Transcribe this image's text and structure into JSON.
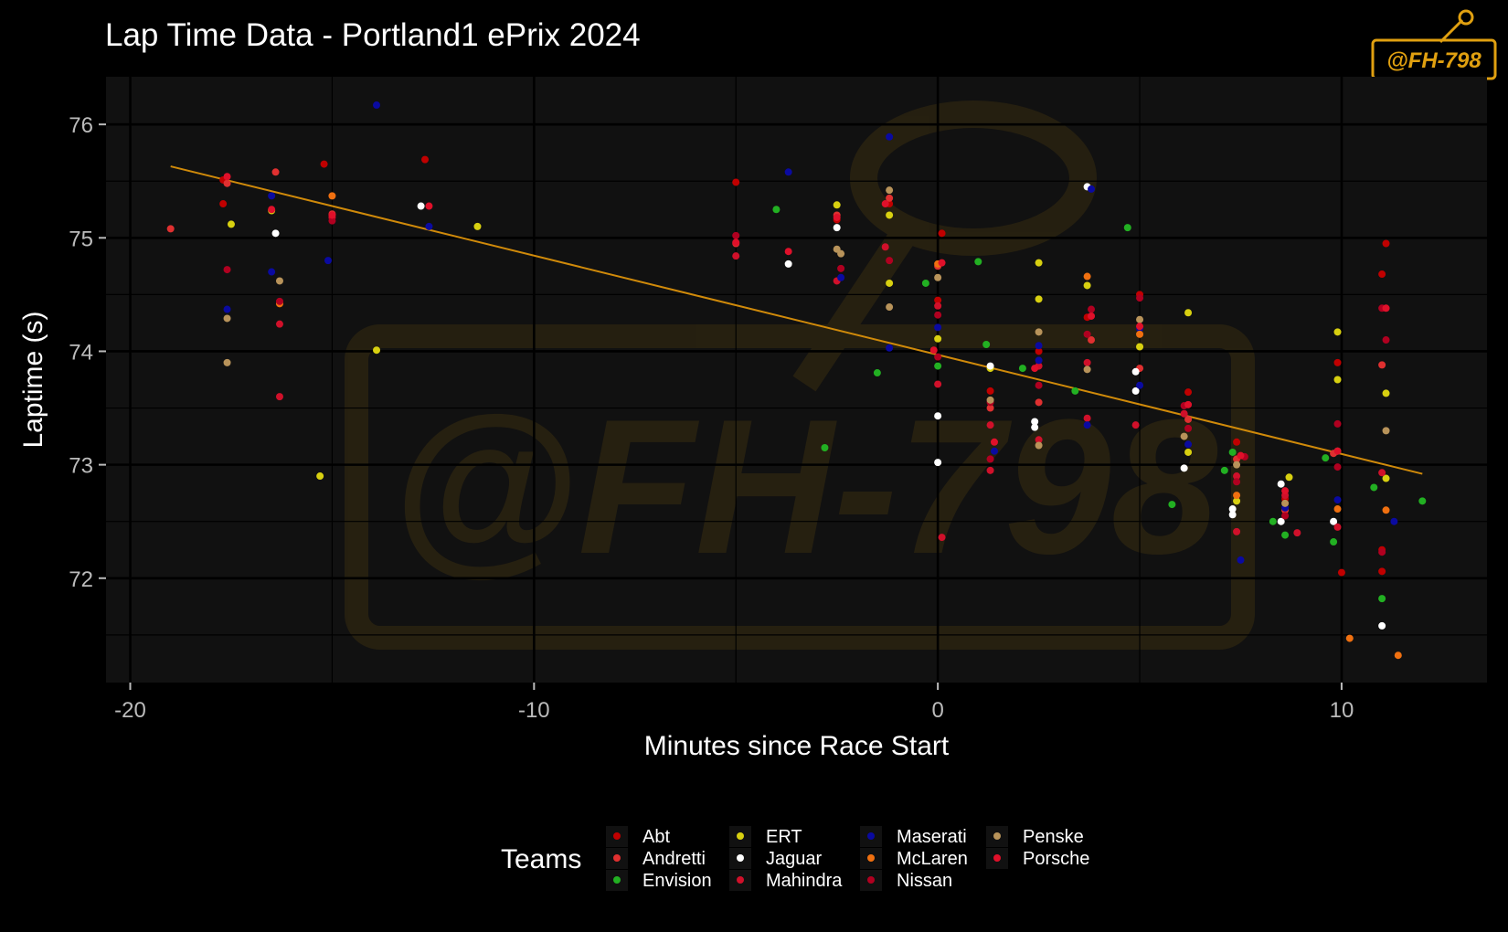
{
  "chart_data": {
    "type": "scatter",
    "title": "Lap Time Data - Portland1 ePrix 2024",
    "xlabel": "Minutes since Race Start",
    "ylabel": "Laptime (s)",
    "xlim": [
      -20.6,
      13.6
    ],
    "ylim": [
      71.08,
      76.42
    ],
    "x_ticks": [
      -20,
      -10,
      0,
      10
    ],
    "x_tick_labels": [
      "-20",
      "-10",
      "0",
      "10"
    ],
    "y_ticks": [
      72,
      73,
      74,
      75,
      76
    ],
    "y_tick_labels": [
      "72",
      "73",
      "74",
      "75",
      "76"
    ],
    "grid": true,
    "legend_title": "Teams",
    "legend_position": "bottom",
    "trend_line": {
      "color": "#D08A0A",
      "points": [
        [
          -19.0,
          75.63
        ],
        [
          12.0,
          72.92
        ]
      ]
    },
    "series": [
      {
        "name": "Abt",
        "color": "#C00000",
        "points": [
          [
            -17.7,
            75.51
          ],
          [
            -17.7,
            75.3
          ],
          [
            -15.2,
            75.65
          ],
          [
            -12.7,
            75.69
          ],
          [
            -5.0,
            75.49
          ],
          [
            -2.5,
            75.16
          ],
          [
            -1.2,
            75.3
          ],
          [
            0.1,
            75.04
          ],
          [
            0.0,
            74.45
          ],
          [
            1.3,
            73.65
          ],
          [
            2.5,
            74.0
          ],
          [
            3.7,
            74.3
          ],
          [
            5.0,
            74.5
          ],
          [
            6.2,
            73.64
          ],
          [
            7.4,
            73.2
          ],
          [
            8.6,
            72.7
          ],
          [
            9.9,
            73.9
          ],
          [
            11.1,
            74.95
          ],
          [
            11.0,
            74.68
          ],
          [
            11.0,
            72.25
          ],
          [
            11.0,
            72.06
          ],
          [
            10.0,
            72.05
          ]
        ]
      },
      {
        "name": "Andretti",
        "color": "#E03030",
        "points": [
          [
            -19.0,
            75.08
          ],
          [
            -17.6,
            75.48
          ],
          [
            -16.4,
            75.58
          ],
          [
            -15.0,
            75.21
          ],
          [
            -5.0,
            74.95
          ],
          [
            -2.5,
            75.2
          ],
          [
            -1.2,
            75.35
          ],
          [
            0.0,
            74.75
          ],
          [
            1.3,
            73.5
          ],
          [
            2.5,
            73.55
          ],
          [
            3.8,
            74.1
          ],
          [
            5.0,
            73.85
          ],
          [
            6.2,
            73.4
          ],
          [
            7.4,
            73.05
          ],
          [
            8.6,
            72.6
          ],
          [
            9.8,
            73.1
          ],
          [
            11.0,
            73.88
          ]
        ]
      },
      {
        "name": "Envision",
        "color": "#22B022",
        "points": [
          [
            -4.0,
            75.25
          ],
          [
            -2.8,
            73.15
          ],
          [
            -1.5,
            73.81
          ],
          [
            -0.3,
            74.6
          ],
          [
            0.0,
            73.87
          ],
          [
            1.0,
            74.79
          ],
          [
            1.2,
            74.06
          ],
          [
            2.1,
            73.85
          ],
          [
            3.4,
            73.65
          ],
          [
            4.7,
            75.09
          ],
          [
            5.8,
            72.65
          ],
          [
            7.1,
            72.95
          ],
          [
            7.3,
            73.11
          ],
          [
            8.3,
            72.5
          ],
          [
            8.6,
            72.38
          ],
          [
            9.6,
            73.06
          ],
          [
            9.8,
            72.32
          ],
          [
            10.8,
            72.8
          ],
          [
            11.0,
            71.82
          ],
          [
            12.0,
            72.68
          ]
        ]
      },
      {
        "name": "ERT",
        "color": "#D8D010",
        "points": [
          [
            -17.5,
            75.12
          ],
          [
            -16.5,
            75.24
          ],
          [
            -15.3,
            72.9
          ],
          [
            -13.9,
            74.01
          ],
          [
            -11.4,
            75.1
          ],
          [
            -2.5,
            75.29
          ],
          [
            -1.2,
            75.2
          ],
          [
            -1.2,
            74.6
          ],
          [
            0.0,
            74.11
          ],
          [
            1.3,
            73.85
          ],
          [
            2.5,
            74.78
          ],
          [
            2.5,
            74.46
          ],
          [
            3.7,
            74.58
          ],
          [
            5.0,
            74.04
          ],
          [
            6.2,
            74.34
          ],
          [
            6.2,
            73.11
          ],
          [
            7.4,
            72.68
          ],
          [
            8.7,
            72.89
          ],
          [
            9.9,
            74.17
          ],
          [
            9.9,
            73.75
          ],
          [
            11.1,
            73.63
          ],
          [
            11.1,
            72.88
          ]
        ]
      },
      {
        "name": "Jaguar",
        "color": "#FFFFFF",
        "points": [
          [
            -16.4,
            75.04
          ],
          [
            -12.8,
            75.28
          ],
          [
            -3.7,
            74.77
          ],
          [
            -2.5,
            75.09
          ],
          [
            0.0,
            73.43
          ],
          [
            0.0,
            73.02
          ],
          [
            1.3,
            73.87
          ],
          [
            2.4,
            73.38
          ],
          [
            2.4,
            73.33
          ],
          [
            3.7,
            75.45
          ],
          [
            4.9,
            73.82
          ],
          [
            4.9,
            73.65
          ],
          [
            6.1,
            72.97
          ],
          [
            7.3,
            72.61
          ],
          [
            7.3,
            72.56
          ],
          [
            8.5,
            72.83
          ],
          [
            8.5,
            72.5
          ],
          [
            9.8,
            72.5
          ],
          [
            11.0,
            71.58
          ]
        ]
      },
      {
        "name": "Mahindra",
        "color": "#D0102A",
        "points": [
          [
            -16.3,
            74.24
          ],
          [
            -16.3,
            73.6
          ],
          [
            -15.0,
            75.18
          ],
          [
            -5.0,
            74.84
          ],
          [
            -2.5,
            74.62
          ],
          [
            -1.3,
            74.92
          ],
          [
            0.0,
            74.4
          ],
          [
            0.0,
            73.71
          ],
          [
            0.1,
            72.36
          ],
          [
            1.3,
            73.35
          ],
          [
            1.3,
            72.95
          ],
          [
            2.5,
            73.87
          ],
          [
            2.5,
            73.22
          ],
          [
            3.7,
            73.9
          ],
          [
            3.7,
            73.41
          ],
          [
            4.9,
            73.35
          ],
          [
            6.1,
            73.45
          ],
          [
            7.4,
            72.9
          ],
          [
            7.4,
            72.41
          ],
          [
            8.6,
            72.73
          ],
          [
            8.9,
            72.4
          ],
          [
            9.9,
            72.45
          ],
          [
            11.0,
            72.93
          ]
        ]
      },
      {
        "name": "Maserati",
        "color": "#0A0AA0",
        "points": [
          [
            -17.6,
            74.37
          ],
          [
            -16.5,
            75.37
          ],
          [
            -16.5,
            74.7
          ],
          [
            -15.1,
            74.8
          ],
          [
            -13.9,
            76.17
          ],
          [
            -12.6,
            75.1
          ],
          [
            -3.7,
            75.58
          ],
          [
            -2.4,
            74.65
          ],
          [
            -1.2,
            75.89
          ],
          [
            -1.2,
            74.03
          ],
          [
            0.0,
            74.21
          ],
          [
            1.4,
            73.12
          ],
          [
            2.5,
            74.05
          ],
          [
            2.5,
            73.92
          ],
          [
            3.8,
            75.43
          ],
          [
            3.7,
            73.35
          ],
          [
            5.0,
            74.2
          ],
          [
            5.0,
            73.7
          ],
          [
            6.2,
            73.18
          ],
          [
            7.5,
            72.16
          ],
          [
            8.6,
            72.62
          ],
          [
            9.9,
            72.69
          ],
          [
            11.3,
            72.5
          ]
        ]
      },
      {
        "name": "McLaren",
        "color": "#F07010",
        "points": [
          [
            -15.0,
            75.37
          ],
          [
            -16.3,
            74.42
          ],
          [
            0.0,
            74.77
          ],
          [
            3.7,
            74.66
          ],
          [
            5.0,
            74.15
          ],
          [
            7.4,
            72.73
          ],
          [
            9.9,
            72.61
          ],
          [
            10.2,
            71.47
          ],
          [
            11.1,
            72.6
          ],
          [
            11.4,
            71.32
          ]
        ]
      },
      {
        "name": "Nissan",
        "color": "#B00020",
        "points": [
          [
            -17.6,
            74.72
          ],
          [
            -16.3,
            74.44
          ],
          [
            -15.0,
            75.15
          ],
          [
            -5.0,
            75.02
          ],
          [
            -2.4,
            74.73
          ],
          [
            -1.2,
            74.8
          ],
          [
            0.0,
            74.32
          ],
          [
            0.0,
            73.95
          ],
          [
            1.3,
            73.55
          ],
          [
            1.3,
            73.05
          ],
          [
            2.5,
            73.7
          ],
          [
            3.8,
            74.37
          ],
          [
            3.7,
            74.15
          ],
          [
            5.0,
            74.47
          ],
          [
            6.1,
            73.52
          ],
          [
            6.2,
            73.32
          ],
          [
            7.6,
            73.07
          ],
          [
            7.4,
            72.85
          ],
          [
            8.6,
            72.55
          ],
          [
            9.9,
            73.36
          ],
          [
            9.9,
            72.98
          ],
          [
            11.0,
            74.38
          ],
          [
            11.1,
            74.1
          ],
          [
            11.0,
            72.23
          ]
        ]
      },
      {
        "name": "Penske",
        "color": "#B8935A",
        "points": [
          [
            -17.6,
            74.29
          ],
          [
            -17.6,
            73.9
          ],
          [
            -16.3,
            74.62
          ],
          [
            -2.5,
            74.9
          ],
          [
            -2.4,
            74.86
          ],
          [
            -1.2,
            75.42
          ],
          [
            -1.2,
            74.39
          ],
          [
            0.0,
            74.65
          ],
          [
            1.3,
            73.57
          ],
          [
            2.5,
            74.17
          ],
          [
            2.5,
            73.17
          ],
          [
            3.7,
            73.84
          ],
          [
            5.0,
            74.28
          ],
          [
            6.1,
            73.25
          ],
          [
            7.4,
            73.0
          ],
          [
            8.6,
            72.66
          ],
          [
            9.9,
            73.12
          ],
          [
            11.1,
            73.3
          ]
        ]
      },
      {
        "name": "Porsche",
        "color": "#E0102A",
        "points": [
          [
            -17.6,
            75.54
          ],
          [
            -16.5,
            75.25
          ],
          [
            -15.0,
            75.2
          ],
          [
            -12.6,
            75.28
          ],
          [
            -5.0,
            74.96
          ],
          [
            -3.7,
            74.88
          ],
          [
            -2.5,
            75.18
          ],
          [
            -1.3,
            75.3
          ],
          [
            -0.1,
            74.01
          ],
          [
            0.1,
            74.78
          ],
          [
            1.4,
            73.2
          ],
          [
            2.4,
            73.85
          ],
          [
            3.8,
            74.31
          ],
          [
            5.0,
            74.22
          ],
          [
            6.2,
            73.53
          ],
          [
            7.5,
            73.08
          ],
          [
            8.6,
            72.77
          ],
          [
            9.9,
            73.12
          ],
          [
            11.1,
            74.38
          ]
        ]
      }
    ]
  },
  "watermark": {
    "text": "@FH-798"
  }
}
